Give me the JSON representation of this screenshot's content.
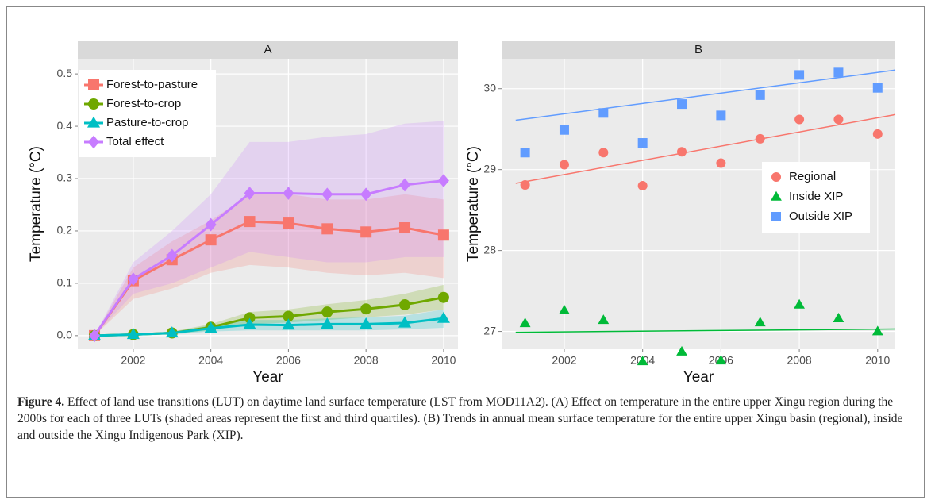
{
  "chart_data": [
    {
      "type": "line",
      "title": "A",
      "xlabel": "Year",
      "ylabel": "Temperature (°C)",
      "x": [
        2001,
        2002,
        2003,
        2004,
        2005,
        2006,
        2007,
        2008,
        2009,
        2010
      ],
      "xlim": [
        2000.57,
        2010.37
      ],
      "xticks": [
        2002,
        2004,
        2006,
        2008,
        2010
      ],
      "ylim": [
        -0.026,
        0.529
      ],
      "yticks": [
        {
          "value": 0,
          "label": "0.0"
        },
        0.1,
        0.2,
        0.3,
        0.4,
        0.5
      ],
      "grid": true,
      "legend": "top-left",
      "series": [
        {
          "name": "Forest-to-pasture",
          "color": "#F8766D",
          "marker": "square",
          "values": [
            0,
            0.105,
            0.145,
            0.183,
            0.218,
            0.215,
            0.204,
            0.198,
            0.206,
            0.192
          ],
          "lower": [
            0,
            0.07,
            0.09,
            0.12,
            0.135,
            0.13,
            0.12,
            0.115,
            0.12,
            0.11
          ],
          "upper": [
            0,
            0.13,
            0.18,
            0.22,
            0.27,
            0.27,
            0.26,
            0.26,
            0.27,
            0.26
          ]
        },
        {
          "name": "Forest-to-crop",
          "color": "#6FA800",
          "marker": "circle",
          "values": [
            0,
            0.002,
            0.005,
            0.016,
            0.034,
            0.037,
            0.045,
            0.051,
            0.059,
            0.073
          ],
          "lower": [
            0,
            0,
            0.003,
            0.01,
            0.022,
            0.025,
            0.03,
            0.035,
            0.04,
            0.05
          ],
          "upper": [
            0,
            0.004,
            0.008,
            0.022,
            0.045,
            0.05,
            0.06,
            0.068,
            0.08,
            0.097
          ]
        },
        {
          "name": "Pasture-to-crop",
          "color": "#00BFC4",
          "marker": "triangle",
          "values": [
            0,
            0.002,
            0.005,
            0.014,
            0.021,
            0.02,
            0.022,
            0.022,
            0.024,
            0.033
          ],
          "lower": [
            0,
            0,
            0.002,
            0.008,
            0.01,
            0.01,
            0.01,
            0.01,
            0.012,
            0.015
          ],
          "upper": [
            0,
            0.004,
            0.007,
            0.02,
            0.03,
            0.03,
            0.033,
            0.035,
            0.038,
            0.05
          ]
        },
        {
          "name": "Total effect",
          "color": "#C77CFF",
          "marker": "diamond",
          "values": [
            0,
            0.108,
            0.153,
            0.212,
            0.272,
            0.272,
            0.27,
            0.27,
            0.288,
            0.296
          ],
          "lower": [
            0,
            0.08,
            0.1,
            0.13,
            0.16,
            0.15,
            0.14,
            0.14,
            0.15,
            0.15
          ],
          "upper": [
            0,
            0.14,
            0.2,
            0.27,
            0.37,
            0.37,
            0.38,
            0.385,
            0.405,
            0.41
          ]
        }
      ]
    },
    {
      "type": "scatter",
      "title": "B",
      "xlabel": "Year",
      "ylabel": "Temperature (°C)",
      "x": [
        2001,
        2002,
        2003,
        2004,
        2005,
        2006,
        2007,
        2008,
        2009,
        2010
      ],
      "xlim": [
        2000.4,
        2010.45
      ],
      "xticks": [
        2002,
        2004,
        2006,
        2008,
        2010
      ],
      "ylim": [
        26.78,
        30.37
      ],
      "yticks": [
        27,
        28,
        29,
        30
      ],
      "grid": true,
      "legend": "right",
      "series": [
        {
          "name": "Regional",
          "color": "#F8766D",
          "marker": "circle",
          "values": [
            28.81,
            29.06,
            29.21,
            28.8,
            29.22,
            29.08,
            29.38,
            29.62,
            29.62,
            29.44
          ],
          "trend": {
            "x": [
              2000.76,
              2010.45
            ],
            "y": [
              28.83,
              29.68
            ]
          }
        },
        {
          "name": "Inside XIP",
          "color": "#00BA38",
          "marker": "triangle",
          "values": [
            27.1,
            27.26,
            27.14,
            26.63,
            26.75,
            26.64,
            27.11,
            27.33,
            27.16,
            27.0
          ],
          "trend": {
            "x": [
              2000.76,
              2010.45
            ],
            "y": [
              26.99,
              27.03
            ]
          }
        },
        {
          "name": "Outside XIP",
          "color": "#619CFF",
          "marker": "square",
          "values": [
            29.21,
            29.49,
            29.7,
            29.33,
            29.81,
            29.67,
            29.92,
            30.17,
            30.2,
            30.01
          ],
          "trend": {
            "x": [
              2000.76,
              2010.45
            ],
            "y": [
              29.61,
              30.23
            ]
          }
        }
      ]
    }
  ],
  "caption": {
    "label": "Figure 4.",
    "text": "Effect of land use transitions (LUT) on daytime land surface temperature (LST from MOD11A2). (A) Effect on temperature in the entire upper Xingu region during the 2000s for each of three LUTs (shaded areas represent the first and third quartiles). (B) Trends in annual mean surface temperature for the entire upper Xingu basin (regional), inside and outside the Xingu Indigenous Park (XIP)."
  }
}
